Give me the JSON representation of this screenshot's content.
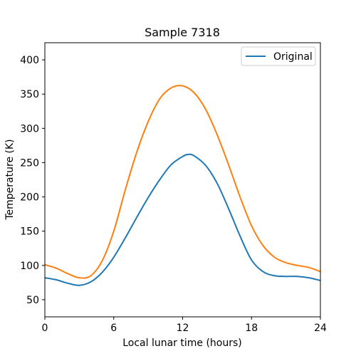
{
  "chart_data": {
    "type": "line",
    "title": "Sample 7318",
    "xlabel": "Local lunar time (hours)",
    "ylabel": "Temperature (K)",
    "xlim": [
      0,
      24
    ],
    "ylim": [
      25,
      425
    ],
    "xticks": [
      0,
      6,
      12,
      18,
      24
    ],
    "yticks": [
      50,
      100,
      150,
      200,
      250,
      300,
      350,
      400
    ],
    "grid": false,
    "legend_position": "top-right",
    "series": [
      {
        "name": "Original",
        "color": "#1f77b4",
        "x": [
          0,
          1,
          2,
          3,
          4,
          5,
          6,
          7,
          8,
          9,
          10,
          11,
          12,
          12.5,
          13,
          14,
          15,
          16,
          17,
          18,
          19,
          20,
          21,
          22,
          23,
          24
        ],
        "y": [
          82,
          79,
          74,
          71,
          76,
          90,
          112,
          140,
          170,
          199,
          225,
          247,
          259,
          262,
          260,
          246,
          220,
          183,
          143,
          108,
          91,
          85,
          84,
          84,
          82,
          78
        ]
      },
      {
        "name": "",
        "color": "#ff7f0e",
        "x": [
          0,
          1,
          2,
          3,
          4,
          5,
          6,
          7,
          8,
          9,
          10,
          11,
          12,
          13,
          14,
          15,
          16,
          17,
          18,
          19,
          20,
          21,
          22,
          23,
          24
        ],
        "y": [
          101,
          96,
          88,
          82,
          85,
          107,
          150,
          210,
          265,
          310,
          343,
          359,
          362,
          352,
          328,
          291,
          247,
          200,
          158,
          129,
          112,
          104,
          100,
          97,
          91
        ]
      }
    ]
  }
}
